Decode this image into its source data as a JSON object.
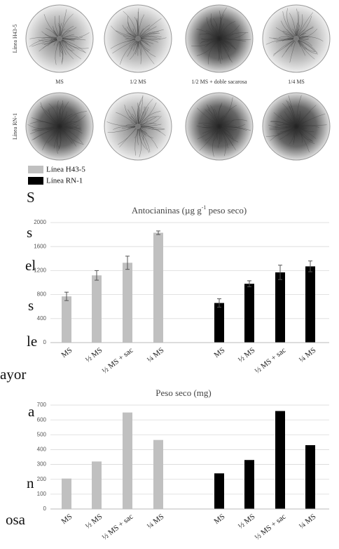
{
  "figure": {
    "row_labels": [
      "Línea H43-5",
      "Línea RN-1"
    ],
    "column_labels": [
      "MS",
      "1/2 MS",
      "1/2 MS + doble sacarosa",
      "1/4 MS"
    ]
  },
  "side_text": [
    "S",
    "s",
    "el",
    "s",
    "le",
    "ayor",
    "a",
    "n",
    "osa"
  ],
  "chart_data": [
    {
      "type": "bar",
      "title": "Antocianinas (µg g",
      "title_superscript": "-1",
      "title_end": " peso seco)",
      "categories": [
        "MS",
        "½ MS",
        "½ MS + sac",
        "¼ MS"
      ],
      "series": [
        {
          "name": "Línea H43-5",
          "color": "#c0c0c0",
          "values": [
            770,
            1120,
            1330,
            1830
          ],
          "errors": [
            70,
            80,
            110,
            30
          ]
        },
        {
          "name": "Línea RN-1",
          "color": "#000000",
          "values": [
            660,
            980,
            1170,
            1270
          ],
          "errors": [
            70,
            50,
            120,
            90
          ]
        }
      ],
      "ylim": [
        0,
        2000
      ],
      "yticks": [
        0,
        400,
        800,
        1200,
        1600,
        2000
      ],
      "grid": true
    },
    {
      "type": "bar",
      "title": "Peso seco (mg)",
      "categories": [
        "MS",
        "½ MS",
        "½ MS + sac",
        "¼ MS"
      ],
      "series": [
        {
          "color": "#c0c0c0",
          "values": [
            205,
            320,
            650,
            465
          ]
        },
        {
          "color": "#000000",
          "values": [
            240,
            330,
            660,
            430
          ]
        }
      ],
      "ylim": [
        0,
        700
      ],
      "yticks": [
        0,
        100,
        200,
        300,
        400,
        500,
        600,
        700
      ],
      "grid": true
    }
  ]
}
